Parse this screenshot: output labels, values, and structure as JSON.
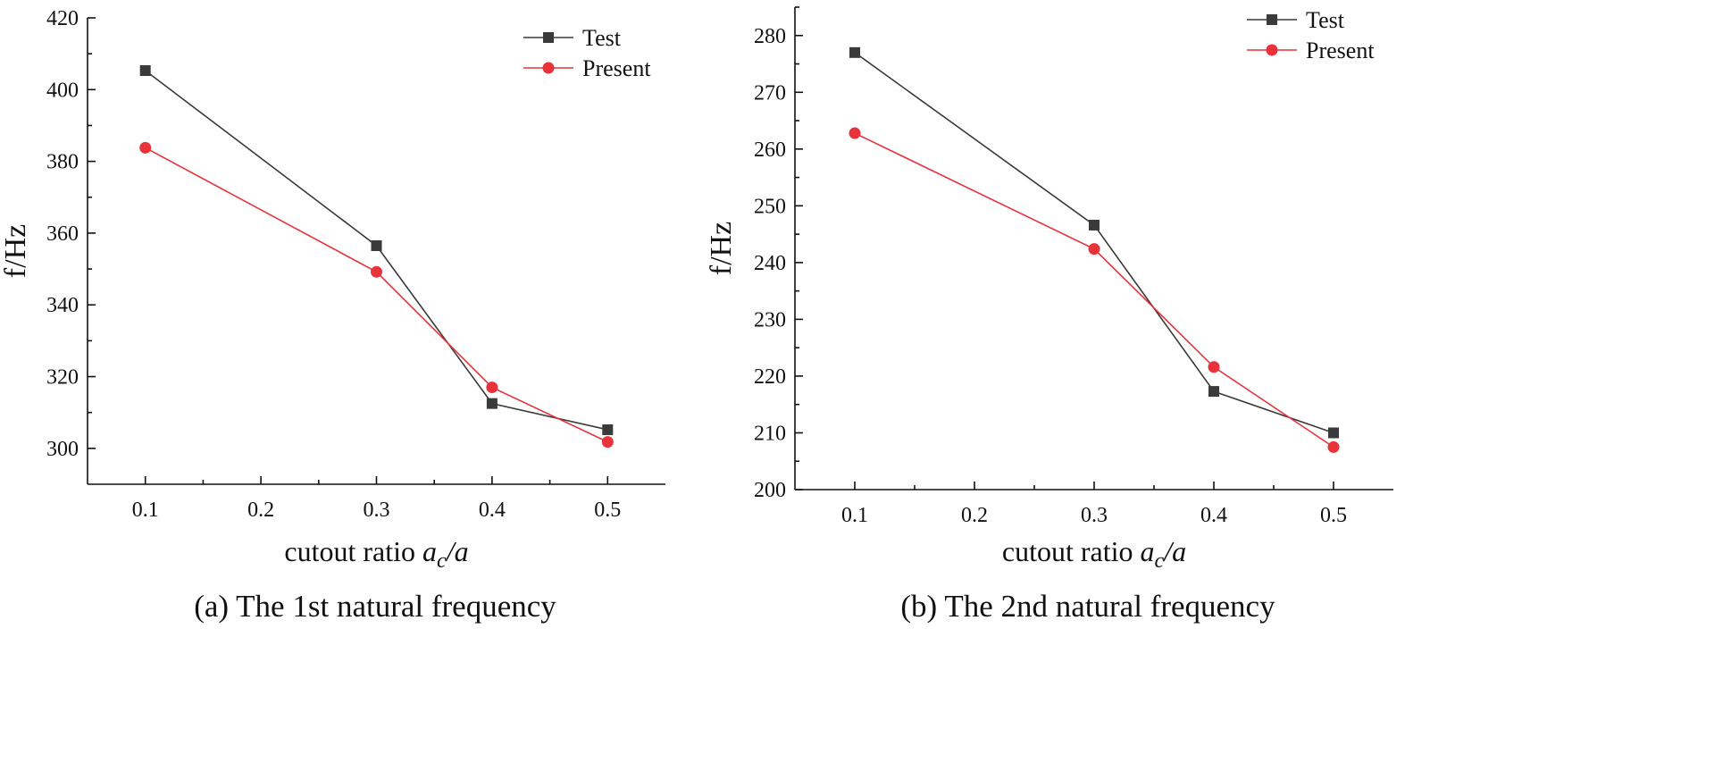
{
  "chart_data": [
    {
      "type": "line",
      "caption": "(a) The 1st natural frequency",
      "xlabel_prefix": "cutout ratio ",
      "xlabel_var": "a",
      "xlabel_sub": "c",
      "xlabel_suffix": "/a",
      "ylabel": "f/Hz",
      "xlim": [
        0.05,
        0.55
      ],
      "ylim": [
        290,
        420
      ],
      "xticks": [
        0.1,
        0.2,
        0.3,
        0.4,
        0.5
      ],
      "xtick_labels": [
        "0.1",
        "0.2",
        "0.3",
        "0.4",
        "0.5"
      ],
      "yticks": [
        300,
        320,
        340,
        360,
        380,
        400,
        420
      ],
      "ytick_labels": [
        "300",
        "320",
        "340",
        "360",
        "380",
        "400",
        "420"
      ],
      "legend_position": "top-right",
      "series": [
        {
          "name": "Test",
          "marker": "square",
          "color": "#3a3a3a",
          "x": [
            0.1,
            0.3,
            0.4,
            0.5
          ],
          "y": [
            405.3,
            356.5,
            312.5,
            305.2
          ]
        },
        {
          "name": "Present",
          "marker": "circle",
          "color": "#e8333a",
          "x": [
            0.1,
            0.3,
            0.4,
            0.5
          ],
          "y": [
            383.8,
            349.2,
            317.0,
            301.8
          ]
        }
      ]
    },
    {
      "type": "line",
      "caption": "(b) The 2nd natural frequency",
      "xlabel_prefix": "cutout ratio ",
      "xlabel_var": "a",
      "xlabel_sub": "c",
      "xlabel_suffix": "/a",
      "ylabel": "f/Hz",
      "xlim": [
        0.05,
        0.55
      ],
      "ylim": [
        200,
        285
      ],
      "xticks": [
        0.1,
        0.2,
        0.3,
        0.4,
        0.5
      ],
      "xtick_labels": [
        "0.1",
        "0.2",
        "0.3",
        "0.4",
        "0.5"
      ],
      "yticks": [
        200,
        210,
        220,
        230,
        240,
        250,
        260,
        270,
        280
      ],
      "ytick_labels": [
        "200",
        "210",
        "220",
        "230",
        "240",
        "250",
        "260",
        "270",
        "280"
      ],
      "legend_position": "top-right",
      "series": [
        {
          "name": "Test",
          "marker": "square",
          "color": "#3a3a3a",
          "x": [
            0.1,
            0.3,
            0.4,
            0.5
          ],
          "y": [
            277.0,
            246.6,
            217.3,
            210.0
          ]
        },
        {
          "name": "Present",
          "marker": "circle",
          "color": "#e8333a",
          "x": [
            0.1,
            0.3,
            0.4,
            0.5
          ],
          "y": [
            262.8,
            242.4,
            221.6,
            207.5
          ]
        }
      ]
    }
  ]
}
